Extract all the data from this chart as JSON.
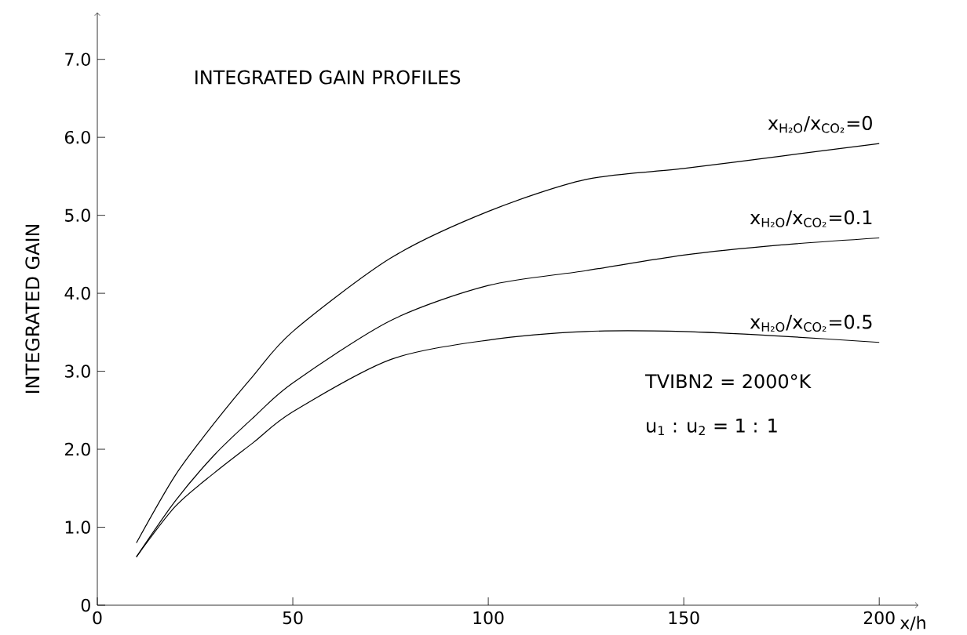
{
  "chart_data": {
    "type": "line",
    "title": "INTEGRATED GAIN PROFILES",
    "xlabel": "x/h",
    "ylabel": "INTEGRATED GAIN",
    "x": [
      10,
      20,
      30,
      40,
      50,
      75,
      100,
      125,
      150,
      175,
      200
    ],
    "series": [
      {
        "name": "x$_{H₂O}$/x$_{CO₂}$=0",
        "color": "#000000",
        "values": [
          0.8,
          1.67,
          2.34,
          2.95,
          3.51,
          4.45,
          5.05,
          5.46,
          5.6,
          5.76,
          5.92
        ]
      },
      {
        "name": "x$_{H₂O}$/x$_{CO₂}$=0.1",
        "color": "#000000",
        "values": [
          0.62,
          1.34,
          1.93,
          2.41,
          2.85,
          3.65,
          4.1,
          4.29,
          4.49,
          4.62,
          4.71
        ]
      },
      {
        "name": "x$_{H₂O}$/x$_{CO₂}$=0.5",
        "color": "#000000",
        "values": [
          0.62,
          1.27,
          1.7,
          2.09,
          2.48,
          3.15,
          3.4,
          3.51,
          3.51,
          3.45,
          3.37
        ]
      }
    ],
    "xlim": [
      0,
      210
    ],
    "ylim": [
      0,
      7.6
    ],
    "xticks": [
      0,
      50,
      100,
      150,
      200
    ],
    "yticks": [
      0,
      {
        "value": 1,
        "label": "1.0"
      },
      {
        "value": 2,
        "label": "2.0"
      },
      {
        "value": 3,
        "label": "3.0"
      },
      {
        "value": 4,
        "label": "4.0"
      },
      {
        "value": 5,
        "label": "5.0"
      },
      {
        "value": 6,
        "label": "6.0"
      },
      {
        "value": 7,
        "label": "7.0"
      }
    ],
    "line_style": "solid",
    "annotations": [
      "TVIBN2 = 2000°K",
      "u$_{1}$ : u$_{2}$ = 1 : 1"
    ]
  }
}
